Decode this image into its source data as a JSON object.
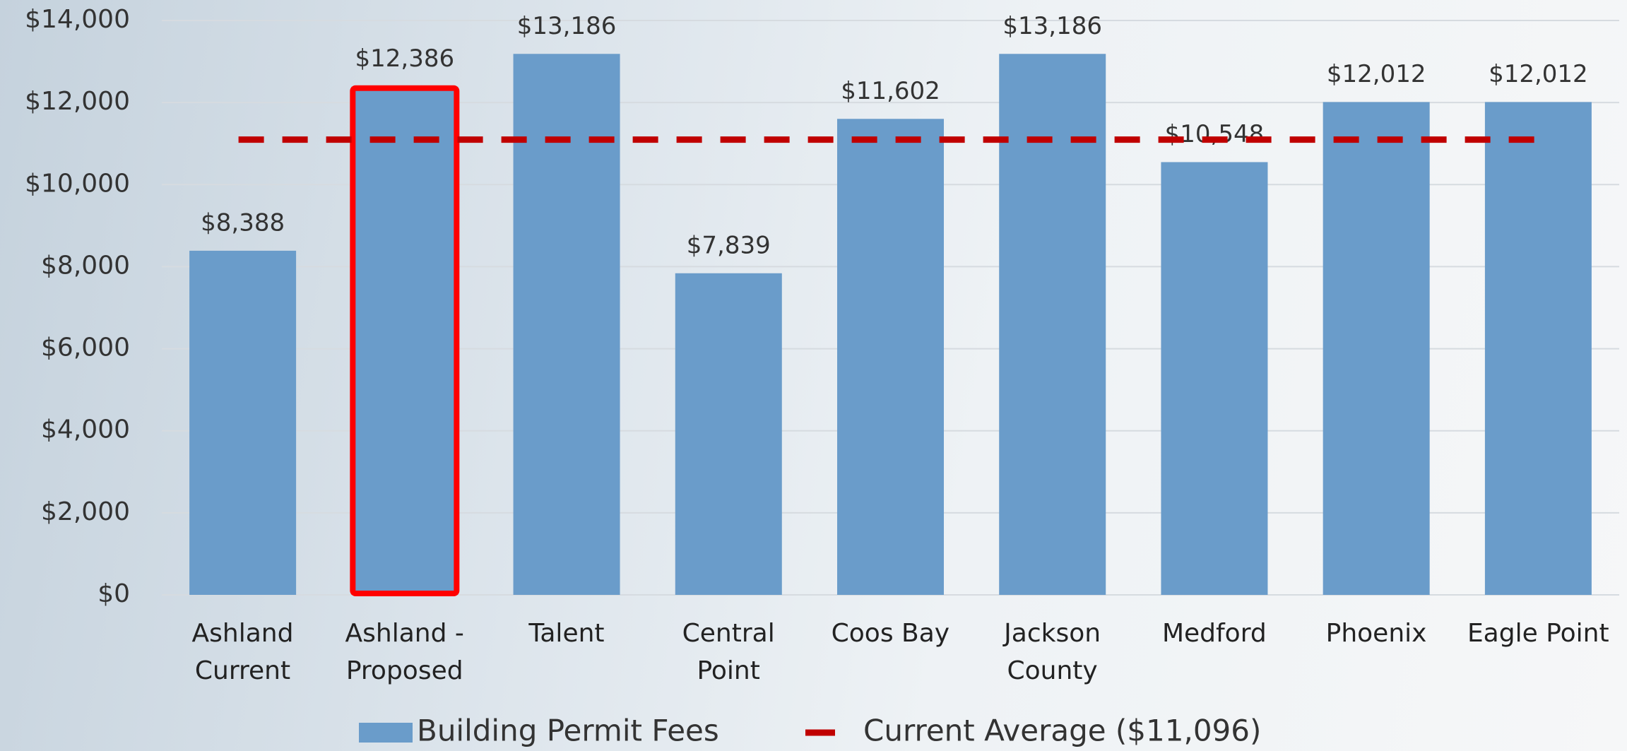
{
  "chart_data": {
    "type": "bar",
    "categories": [
      "Ashland\nCurrent",
      "Ashland -\nProposed",
      "Talent",
      "Central\nPoint",
      "Coos Bay",
      "Jackson\nCounty",
      "Medford",
      "Phoenix",
      "Eagle Point"
    ],
    "series": [
      {
        "name": "Building Permit Fees",
        "color": "#6a9cca",
        "values": [
          8388,
          12386,
          13186,
          7839,
          11602,
          13186,
          10548,
          12012,
          12012
        ],
        "value_labels": [
          "$8,388",
          "$12,386",
          "$13,186",
          "$7,839",
          "$11,602",
          "$13,186",
          "$10,548",
          "$12,012",
          "$12,012"
        ]
      }
    ],
    "average": {
      "name": "Current Average ($11,096)",
      "value": 11096,
      "color": "#c00000"
    },
    "highlight": {
      "index": 1,
      "color": "#ff0000"
    },
    "ylim": [
      0,
      14000
    ],
    "yticks": [
      {
        "value": 0,
        "label": "$0"
      },
      {
        "value": 2000,
        "label": "$2,000"
      },
      {
        "value": 4000,
        "label": "$4,000"
      },
      {
        "value": 6000,
        "label": "$6,000"
      },
      {
        "value": 8000,
        "label": "$8,000"
      },
      {
        "value": 10000,
        "label": "$10,000"
      },
      {
        "value": 12000,
        "label": "$12,000"
      },
      {
        "value": 14000,
        "label": "$14,000"
      }
    ],
    "grid": true
  }
}
